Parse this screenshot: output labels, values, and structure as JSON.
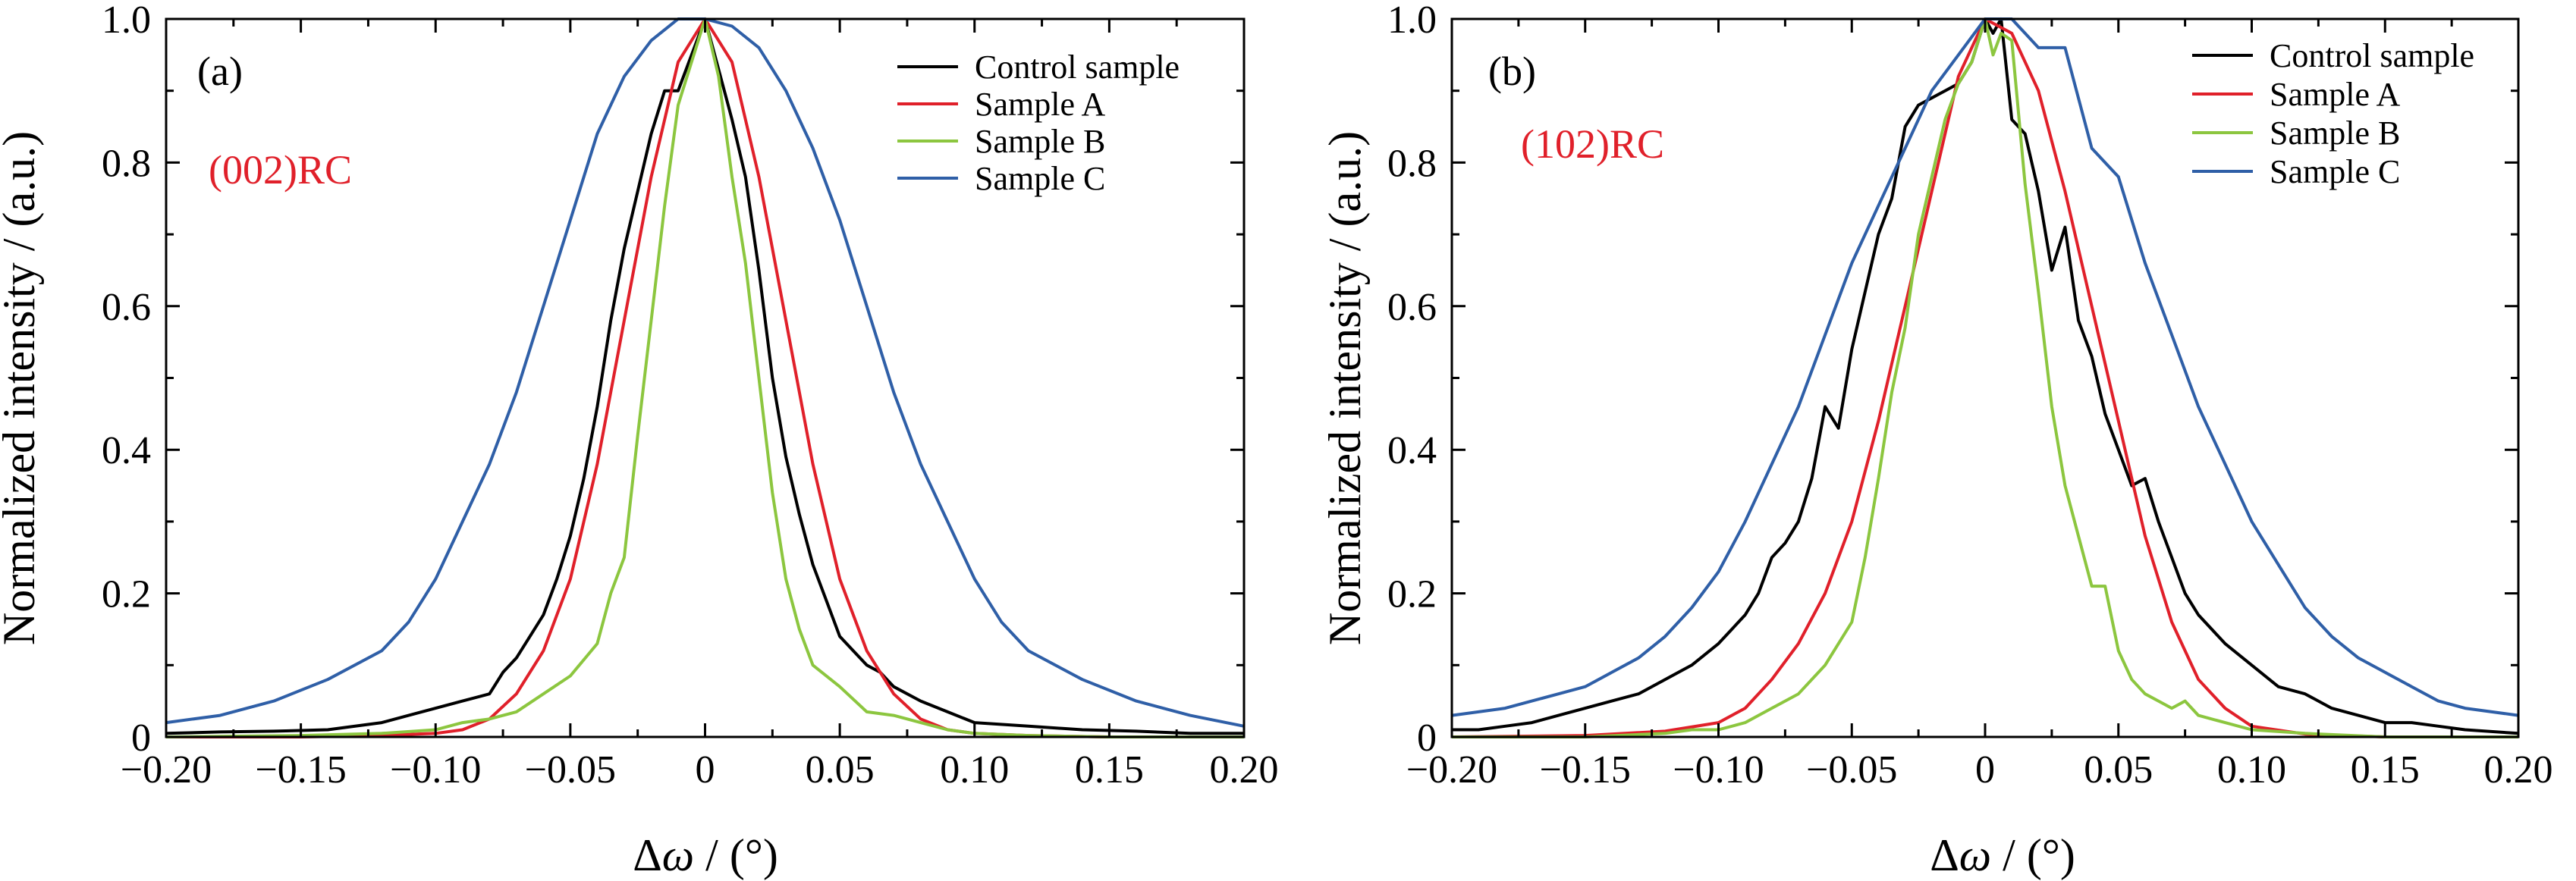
{
  "chart_data": [
    {
      "type": "line",
      "panel_label": "(a)",
      "annotation": "(002)RC",
      "annotation_color": "#e0202a",
      "xlabel_main": "Δ",
      "xlabel_symbol": "ω",
      "xlabel_unit": " / (°)",
      "ylabel": "Normalized intensity / (a.u.)",
      "xlim": [
        -0.2,
        0.2
      ],
      "ylim": [
        0,
        1.0
      ],
      "xticks": [
        "−0.20",
        "−0.15",
        "−0.10",
        "−0.05",
        "0",
        "0.05",
        "0.10",
        "0.15",
        "0.20"
      ],
      "yticks": [
        "0",
        "0.2",
        "0.4",
        "0.6",
        "0.8",
        "1.0"
      ],
      "legend_position": "top-right",
      "series": [
        {
          "name": "Control sample",
          "color": "#000000",
          "x": [
            -0.2,
            -0.18,
            -0.16,
            -0.14,
            -0.12,
            -0.11,
            -0.1,
            -0.09,
            -0.08,
            -0.075,
            -0.07,
            -0.065,
            -0.06,
            -0.055,
            -0.05,
            -0.045,
            -0.04,
            -0.035,
            -0.03,
            -0.025,
            -0.02,
            -0.015,
            -0.01,
            -0.005,
            0,
            0.005,
            0.01,
            0.015,
            0.02,
            0.025,
            0.03,
            0.035,
            0.04,
            0.045,
            0.05,
            0.055,
            0.06,
            0.065,
            0.07,
            0.08,
            0.09,
            0.1,
            0.12,
            0.14,
            0.16,
            0.18,
            0.2
          ],
          "values": [
            0.005,
            0.007,
            0.008,
            0.01,
            0.02,
            0.03,
            0.04,
            0.05,
            0.06,
            0.09,
            0.11,
            0.14,
            0.17,
            0.22,
            0.28,
            0.36,
            0.46,
            0.58,
            0.68,
            0.76,
            0.84,
            0.9,
            0.9,
            0.95,
            1.0,
            0.93,
            0.86,
            0.78,
            0.65,
            0.5,
            0.39,
            0.31,
            0.24,
            0.19,
            0.14,
            0.12,
            0.1,
            0.09,
            0.07,
            0.05,
            0.035,
            0.02,
            0.015,
            0.01,
            0.008,
            0.005,
            0.005
          ]
        },
        {
          "name": "Sample A",
          "color": "#e0202a",
          "x": [
            -0.2,
            -0.15,
            -0.12,
            -0.1,
            -0.09,
            -0.08,
            -0.07,
            -0.06,
            -0.05,
            -0.04,
            -0.03,
            -0.02,
            -0.01,
            0,
            0.01,
            0.02,
            0.03,
            0.04,
            0.05,
            0.06,
            0.07,
            0.08,
            0.09,
            0.1,
            0.12,
            0.15,
            0.2
          ],
          "values": [
            0.0,
            0.0,
            0.002,
            0.005,
            0.01,
            0.025,
            0.06,
            0.12,
            0.22,
            0.38,
            0.58,
            0.78,
            0.94,
            1.0,
            0.94,
            0.78,
            0.58,
            0.38,
            0.22,
            0.12,
            0.06,
            0.025,
            0.01,
            0.005,
            0.002,
            0.0,
            0.0
          ]
        },
        {
          "name": "Sample B",
          "color": "#8cc63f",
          "x": [
            -0.2,
            -0.15,
            -0.12,
            -0.1,
            -0.09,
            -0.08,
            -0.07,
            -0.06,
            -0.05,
            -0.04,
            -0.035,
            -0.03,
            -0.025,
            -0.02,
            -0.015,
            -0.01,
            -0.005,
            0,
            0.005,
            0.01,
            0.015,
            0.02,
            0.025,
            0.03,
            0.035,
            0.04,
            0.05,
            0.06,
            0.07,
            0.08,
            0.09,
            0.1,
            0.12,
            0.15,
            0.2
          ],
          "values": [
            0.0,
            0.002,
            0.005,
            0.01,
            0.02,
            0.025,
            0.035,
            0.06,
            0.085,
            0.13,
            0.2,
            0.25,
            0.42,
            0.58,
            0.74,
            0.88,
            0.94,
            1.0,
            0.92,
            0.78,
            0.66,
            0.5,
            0.34,
            0.22,
            0.15,
            0.1,
            0.07,
            0.035,
            0.03,
            0.02,
            0.01,
            0.005,
            0.002,
            0.0,
            0.0
          ]
        },
        {
          "name": "Sample C",
          "color": "#2f5fa7",
          "x": [
            -0.2,
            -0.18,
            -0.16,
            -0.14,
            -0.12,
            -0.11,
            -0.1,
            -0.09,
            -0.08,
            -0.07,
            -0.06,
            -0.05,
            -0.04,
            -0.03,
            -0.02,
            -0.01,
            0,
            0.01,
            0.02,
            0.03,
            0.04,
            0.05,
            0.06,
            0.07,
            0.08,
            0.09,
            0.1,
            0.11,
            0.12,
            0.14,
            0.16,
            0.18,
            0.2
          ],
          "values": [
            0.02,
            0.03,
            0.05,
            0.08,
            0.12,
            0.16,
            0.22,
            0.3,
            0.38,
            0.48,
            0.6,
            0.72,
            0.84,
            0.92,
            0.97,
            1.0,
            1.0,
            0.99,
            0.96,
            0.9,
            0.82,
            0.72,
            0.6,
            0.48,
            0.38,
            0.3,
            0.22,
            0.16,
            0.12,
            0.08,
            0.05,
            0.03,
            0.015
          ]
        }
      ]
    },
    {
      "type": "line",
      "panel_label": "(b)",
      "annotation": "(102)RC",
      "annotation_color": "#e0202a",
      "xlabel_main": "Δ",
      "xlabel_symbol": "ω",
      "xlabel_unit": " / (°)",
      "ylabel": "Normalized intensity / (a.u.)",
      "xlim": [
        -0.2,
        0.2
      ],
      "ylim": [
        0,
        1.0
      ],
      "xticks": [
        "−0.20",
        "−0.15",
        "−0.10",
        "−0.05",
        "0",
        "0.05",
        "0.10",
        "0.15",
        "0.20"
      ],
      "yticks": [
        "0",
        "0.2",
        "0.4",
        "0.6",
        "0.8",
        "1.0"
      ],
      "legend_position": "top-right",
      "series": [
        {
          "name": "Control sample",
          "color": "#000000",
          "x": [
            -0.2,
            -0.19,
            -0.18,
            -0.17,
            -0.16,
            -0.15,
            -0.14,
            -0.13,
            -0.12,
            -0.11,
            -0.1,
            -0.095,
            -0.09,
            -0.085,
            -0.08,
            -0.075,
            -0.07,
            -0.065,
            -0.06,
            -0.055,
            -0.05,
            -0.045,
            -0.04,
            -0.035,
            -0.03,
            -0.025,
            -0.02,
            -0.015,
            -0.01,
            -0.005,
            0,
            0.003,
            0.006,
            0.01,
            0.015,
            0.02,
            0.025,
            0.03,
            0.035,
            0.04,
            0.045,
            0.05,
            0.055,
            0.06,
            0.065,
            0.07,
            0.075,
            0.08,
            0.09,
            0.1,
            0.11,
            0.12,
            0.13,
            0.14,
            0.15,
            0.16,
            0.17,
            0.18,
            0.2
          ],
          "values": [
            0.01,
            0.01,
            0.015,
            0.02,
            0.03,
            0.04,
            0.05,
            0.06,
            0.08,
            0.1,
            0.13,
            0.15,
            0.17,
            0.2,
            0.25,
            0.27,
            0.3,
            0.36,
            0.46,
            0.43,
            0.54,
            0.62,
            0.7,
            0.75,
            0.85,
            0.88,
            0.89,
            0.9,
            0.91,
            0.94,
            1.0,
            0.98,
            1.0,
            0.86,
            0.84,
            0.76,
            0.65,
            0.71,
            0.58,
            0.53,
            0.45,
            0.4,
            0.35,
            0.36,
            0.3,
            0.25,
            0.2,
            0.17,
            0.13,
            0.1,
            0.07,
            0.06,
            0.04,
            0.03,
            0.02,
            0.02,
            0.015,
            0.01,
            0.005
          ]
        },
        {
          "name": "Sample A",
          "color": "#e0202a",
          "x": [
            -0.2,
            -0.15,
            -0.12,
            -0.1,
            -0.09,
            -0.08,
            -0.07,
            -0.06,
            -0.05,
            -0.04,
            -0.03,
            -0.02,
            -0.01,
            0,
            0.01,
            0.02,
            0.03,
            0.04,
            0.05,
            0.06,
            0.07,
            0.08,
            0.09,
            0.1,
            0.12,
            0.15,
            0.2
          ],
          "values": [
            0.0,
            0.002,
            0.008,
            0.02,
            0.04,
            0.08,
            0.13,
            0.2,
            0.3,
            0.44,
            0.6,
            0.76,
            0.92,
            1.0,
            0.98,
            0.9,
            0.76,
            0.6,
            0.44,
            0.28,
            0.16,
            0.08,
            0.04,
            0.015,
            0.004,
            0.0,
            0.0
          ]
        },
        {
          "name": "Sample B",
          "color": "#8cc63f",
          "x": [
            -0.2,
            -0.15,
            -0.12,
            -0.11,
            -0.1,
            -0.09,
            -0.08,
            -0.07,
            -0.06,
            -0.05,
            -0.045,
            -0.04,
            -0.035,
            -0.03,
            -0.025,
            -0.02,
            -0.015,
            -0.01,
            -0.005,
            0,
            0.003,
            0.006,
            0.01,
            0.015,
            0.02,
            0.025,
            0.03,
            0.035,
            0.04,
            0.045,
            0.05,
            0.055,
            0.06,
            0.065,
            0.07,
            0.075,
            0.08,
            0.09,
            0.1,
            0.12,
            0.15,
            0.2
          ],
          "values": [
            0.0,
            0.0,
            0.005,
            0.01,
            0.01,
            0.02,
            0.04,
            0.06,
            0.1,
            0.16,
            0.25,
            0.36,
            0.48,
            0.57,
            0.7,
            0.78,
            0.86,
            0.91,
            0.94,
            1.0,
            0.95,
            0.98,
            0.97,
            0.77,
            0.62,
            0.46,
            0.35,
            0.28,
            0.21,
            0.21,
            0.12,
            0.08,
            0.06,
            0.05,
            0.04,
            0.05,
            0.03,
            0.02,
            0.01,
            0.005,
            0.0,
            0.0
          ]
        },
        {
          "name": "Sample C",
          "color": "#2f5fa7",
          "x": [
            -0.2,
            -0.19,
            -0.18,
            -0.17,
            -0.16,
            -0.15,
            -0.14,
            -0.13,
            -0.12,
            -0.11,
            -0.1,
            -0.09,
            -0.08,
            -0.07,
            -0.06,
            -0.05,
            -0.04,
            -0.03,
            -0.02,
            -0.01,
            0,
            0.01,
            0.02,
            0.03,
            0.04,
            0.05,
            0.06,
            0.07,
            0.08,
            0.09,
            0.1,
            0.11,
            0.12,
            0.13,
            0.14,
            0.15,
            0.16,
            0.17,
            0.18,
            0.2
          ],
          "values": [
            0.03,
            0.035,
            0.04,
            0.05,
            0.06,
            0.07,
            0.09,
            0.11,
            0.14,
            0.18,
            0.23,
            0.3,
            0.38,
            0.46,
            0.56,
            0.66,
            0.74,
            0.82,
            0.9,
            0.95,
            1.0,
            1.0,
            0.96,
            0.96,
            0.82,
            0.78,
            0.66,
            0.56,
            0.46,
            0.38,
            0.3,
            0.24,
            0.18,
            0.14,
            0.11,
            0.09,
            0.07,
            0.05,
            0.04,
            0.03
          ]
        }
      ]
    }
  ]
}
